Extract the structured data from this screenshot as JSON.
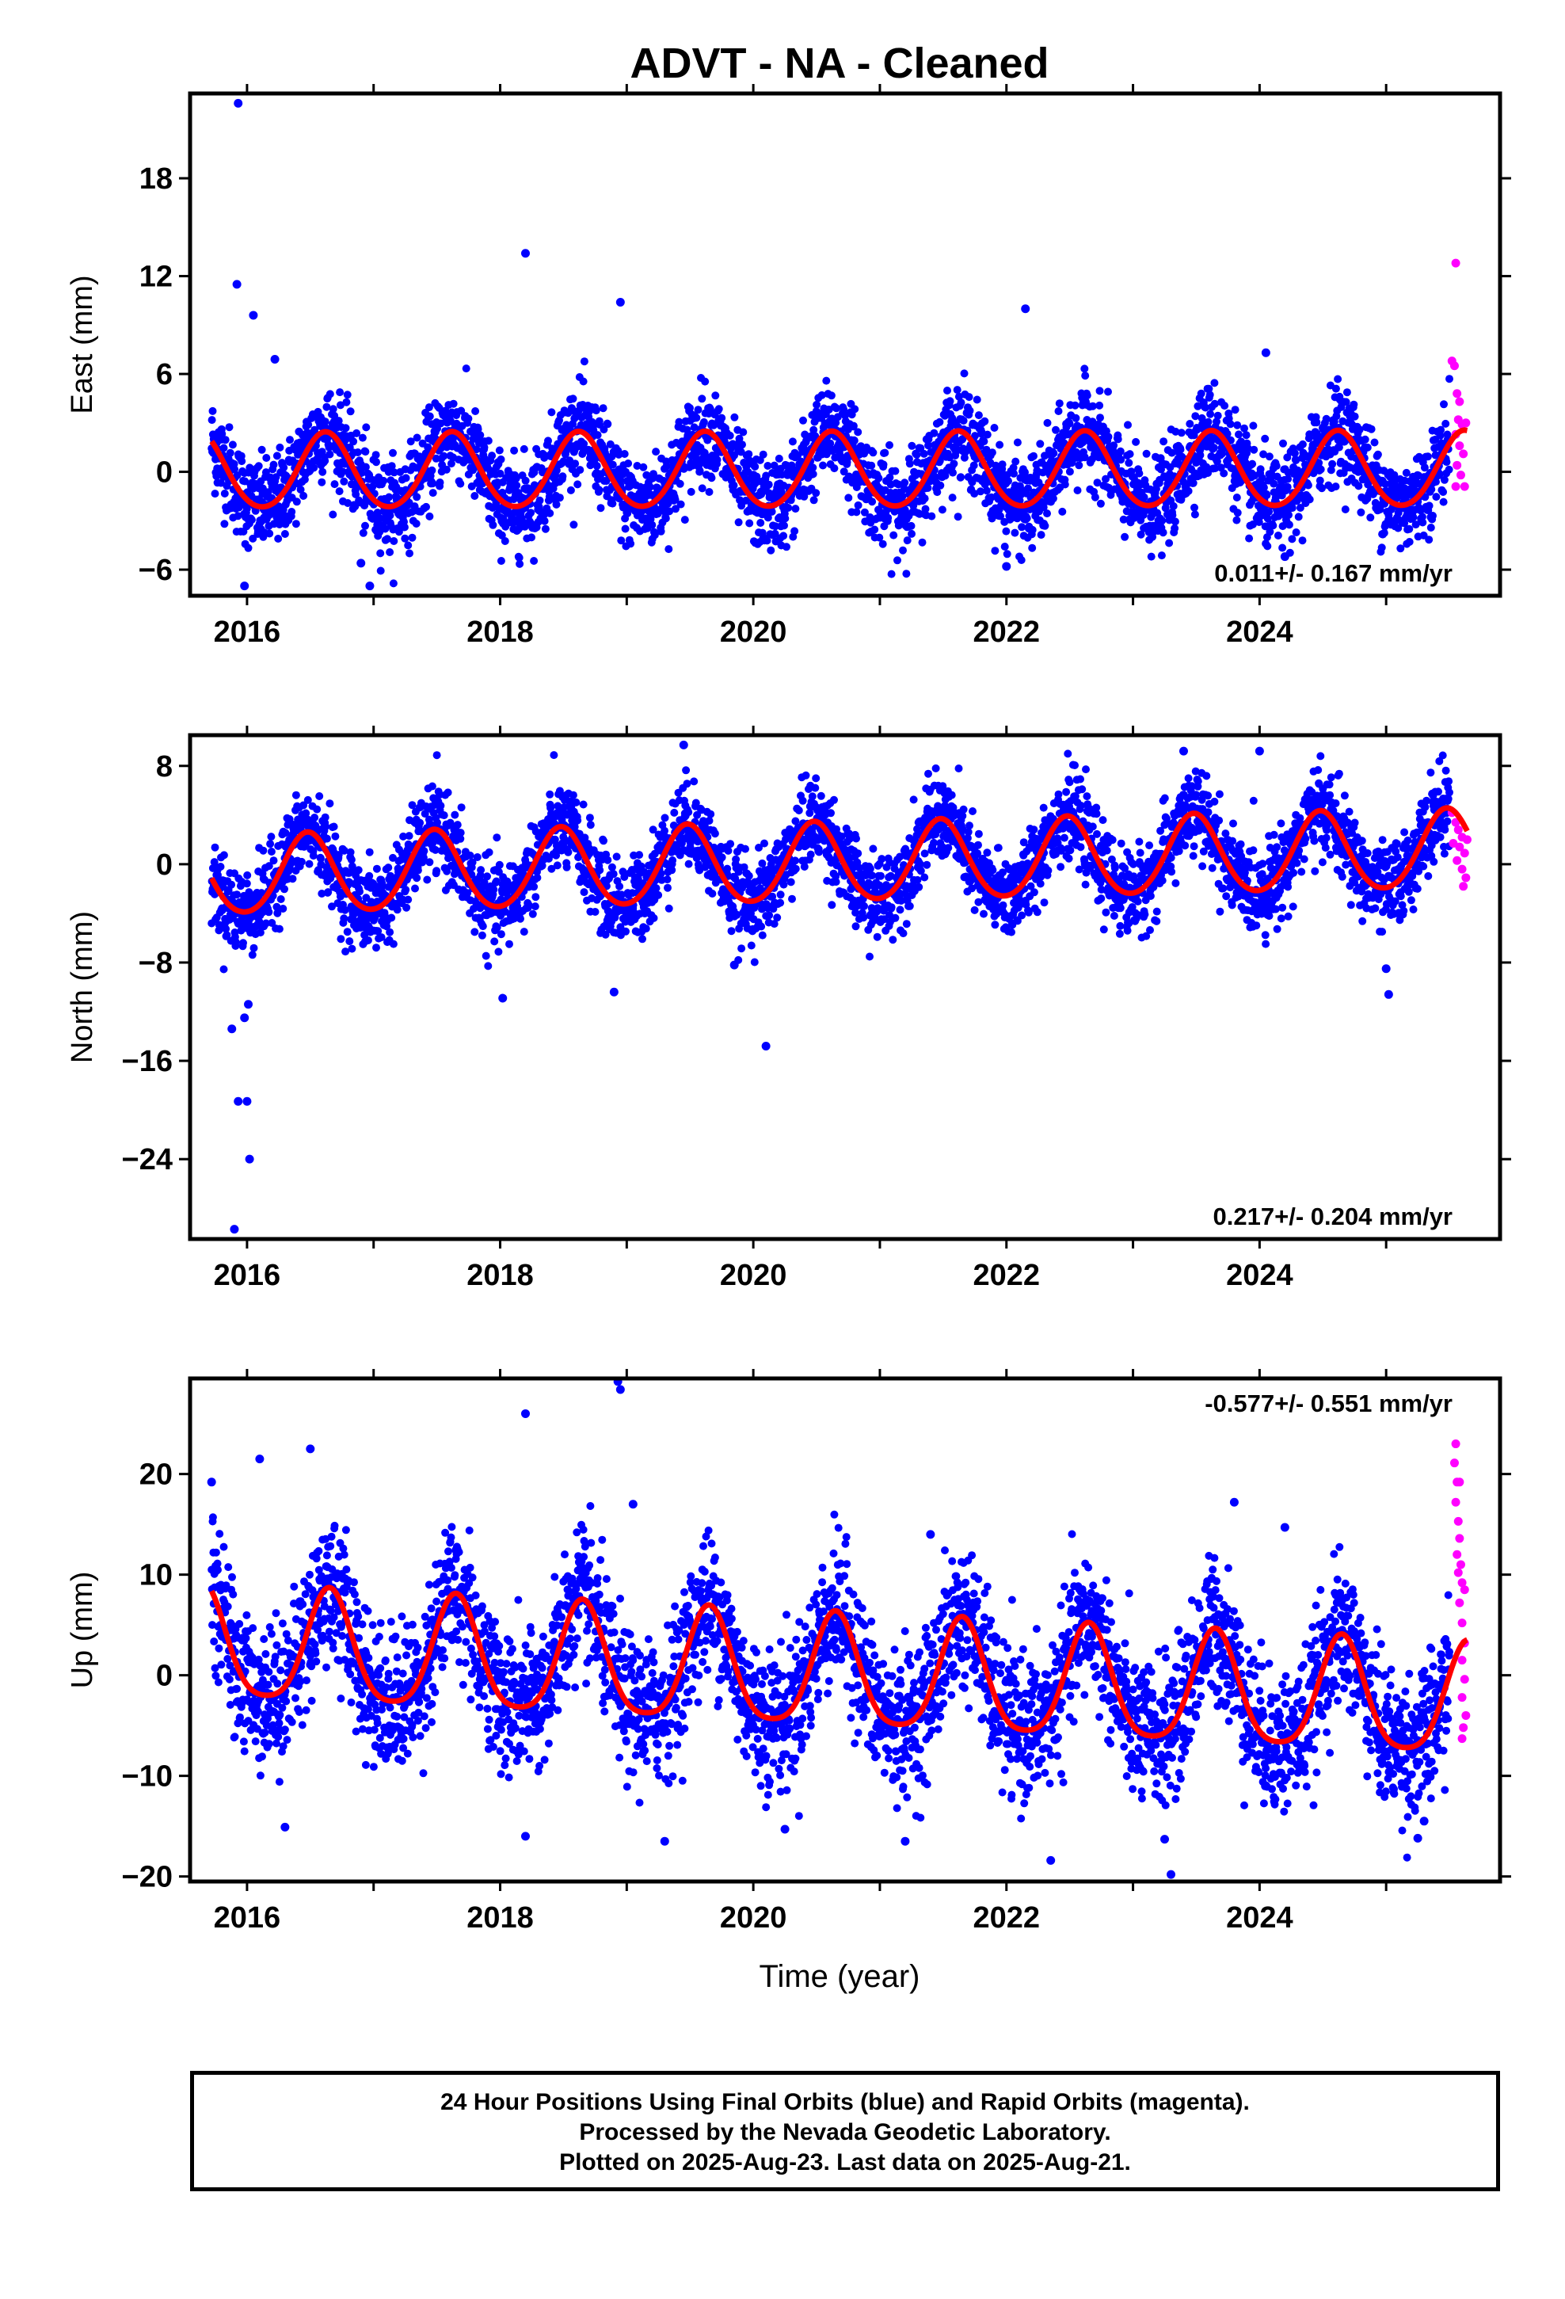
{
  "title": "ADVT  - NA - Cleaned",
  "x_axis_label": "Time (year)",
  "footer": {
    "line1": "24 Hour Positions Using Final Orbits (blue) and Rapid Orbits (magenta).",
    "line2": "Processed by the Nevada Geodetic Laboratory.",
    "line3": "Plotted on 2025-Aug-23. Last data on 2025-Aug-21."
  },
  "colors": {
    "final_orbits": "#0000ff",
    "rapid_orbits": "#ff00ff",
    "model_fit": "#ff0000",
    "frame": "#000000"
  },
  "chart_data": [
    {
      "type": "scatter",
      "panel": "east",
      "ylabel": "East (mm)",
      "xlim": [
        2015.55,
        2025.9
      ],
      "ylim": [
        -7.6,
        23.2
      ],
      "xticks": [
        2016,
        2018,
        2020,
        2022,
        2024
      ],
      "yticks": [
        -6,
        0,
        6,
        12,
        18
      ],
      "ytick_labels": [
        "−6",
        "0",
        "6",
        "12",
        "18"
      ],
      "rate_label": "0.011+/- 0.167 mm/yr",
      "rate_position": "bottom-right",
      "model": {
        "annual_amplitude": 2.3,
        "annual_peak_phase": 0.62,
        "semiannual_amplitude": 0.2,
        "trend_mm_per_yr": 0.011,
        "scatter_sd": 1.4
      },
      "series": [
        {
          "name": "Final Orbits",
          "color": "#0000ff",
          "x_range": [
            2015.72,
            2025.5
          ]
        },
        {
          "name": "Rapid Orbits",
          "color": "#ff00ff",
          "x_range": [
            2025.5,
            2025.64
          ]
        },
        {
          "name": "Model fit",
          "color": "#ff0000"
        }
      ],
      "outliers": [
        [
          2015.93,
          22.6
        ],
        [
          2015.92,
          11.5
        ],
        [
          2016.05,
          9.6
        ],
        [
          2016.22,
          6.9
        ],
        [
          2018.2,
          13.4
        ],
        [
          2018.95,
          10.4
        ],
        [
          2022.15,
          10.0
        ],
        [
          2024.05,
          7.3
        ],
        [
          2016.9,
          -5.6
        ],
        [
          2016.97,
          -7.0
        ],
        [
          2015.98,
          -7.0
        ],
        [
          2022.0,
          -5.8
        ],
        [
          2024.2,
          -5.2
        ]
      ],
      "rapid_points": [
        [
          2025.55,
          12.8
        ],
        [
          2025.52,
          6.8
        ],
        [
          2025.54,
          6.5
        ],
        [
          2025.56,
          4.8
        ],
        [
          2025.58,
          4.3
        ],
        [
          2025.57,
          3.2
        ],
        [
          2025.6,
          2.9
        ],
        [
          2025.55,
          2.3
        ],
        [
          2025.58,
          1.6
        ],
        [
          2025.61,
          1.1
        ],
        [
          2025.56,
          0.4
        ],
        [
          2025.59,
          -0.2
        ],
        [
          2025.55,
          -0.9
        ],
        [
          2025.62,
          -0.9
        ],
        [
          2025.63,
          3.0
        ]
      ]
    },
    {
      "type": "scatter",
      "panel": "north",
      "ylabel": "North (mm)",
      "xlim": [
        2015.55,
        2025.9
      ],
      "ylim": [
        -30.5,
        10.5
      ],
      "xticks": [
        2016,
        2018,
        2020,
        2022,
        2024
      ],
      "yticks": [
        -24,
        -16,
        -8,
        0,
        8
      ],
      "ytick_labels": [
        "−24",
        "−16",
        "−8",
        "0",
        "8"
      ],
      "rate_label": "0.217+/- 0.204 mm/yr",
      "rate_position": "bottom-right",
      "model": {
        "annual_amplitude": 3.2,
        "annual_peak_phase": 0.48,
        "semiannual_amplitude": 0.3,
        "trend_mm_per_yr": 0.217,
        "scatter_sd": 1.7
      },
      "series": [
        {
          "name": "Final Orbits",
          "color": "#0000ff",
          "x_range": [
            2015.72,
            2025.5
          ]
        },
        {
          "name": "Rapid Orbits",
          "color": "#ff00ff",
          "x_range": [
            2025.5,
            2025.64
          ]
        },
        {
          "name": "Model fit",
          "color": "#ff0000"
        }
      ],
      "outliers": [
        [
          2015.9,
          -29.7
        ],
        [
          2015.93,
          -19.3
        ],
        [
          2016.0,
          -19.3
        ],
        [
          2016.02,
          -24.0
        ],
        [
          2015.88,
          -13.4
        ],
        [
          2015.98,
          -12.5
        ],
        [
          2016.01,
          -11.4
        ],
        [
          2018.02,
          -10.9
        ],
        [
          2018.9,
          -10.4
        ],
        [
          2020.1,
          -14.8
        ],
        [
          2025.0,
          -8.5
        ],
        [
          2025.02,
          -10.6
        ],
        [
          2019.45,
          9.7
        ],
        [
          2023.4,
          9.2
        ],
        [
          2024.0,
          9.2
        ],
        [
          2019.85,
          -8.2
        ]
      ],
      "rapid_points": [
        [
          2025.52,
          4.2
        ],
        [
          2025.55,
          3.4
        ],
        [
          2025.57,
          2.8
        ],
        [
          2025.6,
          2.2
        ],
        [
          2025.58,
          1.4
        ],
        [
          2025.62,
          0.9
        ],
        [
          2025.56,
          0.3
        ],
        [
          2025.6,
          -0.4
        ],
        [
          2025.63,
          -1.1
        ],
        [
          2025.61,
          -1.8
        ],
        [
          2025.64,
          2.0
        ],
        [
          2025.53,
          1.7
        ]
      ]
    },
    {
      "type": "scatter",
      "panel": "up",
      "ylabel": "Up (mm)",
      "xlim": [
        2015.55,
        2025.9
      ],
      "ylim": [
        -20.5,
        29.5
      ],
      "xticks": [
        2016,
        2018,
        2020,
        2022,
        2024
      ],
      "yticks": [
        -20,
        -10,
        0,
        10,
        20
      ],
      "ytick_labels": [
        "−20",
        "−10",
        "0",
        "10",
        "20"
      ],
      "rate_label": "-0.577+/- 0.551 mm/yr",
      "rate_position": "top-right",
      "model": {
        "annual_amplitude": 5.5,
        "annual_peak_phase": 0.65,
        "semiannual_amplitude": 1.0,
        "trend_mm_per_yr": -0.577,
        "scatter_sd": 3.5
      },
      "series": [
        {
          "name": "Final Orbits",
          "color": "#0000ff",
          "x_range": [
            2015.72,
            2025.5
          ]
        },
        {
          "name": "Rapid Orbits",
          "color": "#ff00ff",
          "x_range": [
            2025.5,
            2025.64
          ]
        },
        {
          "name": "Model fit",
          "color": "#ff0000"
        }
      ],
      "outliers": [
        [
          2018.2,
          26.0
        ],
        [
          2018.95,
          28.4
        ],
        [
          2018.93,
          29.2
        ],
        [
          2016.1,
          21.5
        ],
        [
          2016.5,
          22.5
        ],
        [
          2015.72,
          19.2
        ],
        [
          2019.05,
          17.0
        ],
        [
          2021.4,
          14.0
        ],
        [
          2023.8,
          17.2
        ],
        [
          2024.2,
          14.7
        ],
        [
          2016.3,
          -15.1
        ],
        [
          2018.2,
          -16.0
        ],
        [
          2019.3,
          -16.5
        ],
        [
          2020.25,
          -15.3
        ],
        [
          2021.2,
          -16.5
        ],
        [
          2022.35,
          -18.4
        ],
        [
          2023.3,
          -19.8
        ],
        [
          2023.25,
          -16.3
        ],
        [
          2025.25,
          -16.2
        ],
        [
          2025.3,
          -14.5
        ]
      ],
      "rapid_points": [
        [
          2025.55,
          23.0
        ],
        [
          2025.54,
          21.1
        ],
        [
          2025.56,
          19.2
        ],
        [
          2025.58,
          19.2
        ],
        [
          2025.55,
          17.2
        ],
        [
          2025.57,
          15.3
        ],
        [
          2025.58,
          13.6
        ],
        [
          2025.56,
          12.0
        ],
        [
          2025.59,
          11.0
        ],
        [
          2025.57,
          10.2
        ],
        [
          2025.6,
          9.2
        ],
        [
          2025.62,
          8.5
        ],
        [
          2025.58,
          7.2
        ],
        [
          2025.6,
          5.2
        ],
        [
          2025.62,
          3.2
        ],
        [
          2025.6,
          1.5
        ],
        [
          2025.62,
          -0.4
        ],
        [
          2025.6,
          -2.2
        ],
        [
          2025.63,
          -4.0
        ],
        [
          2025.61,
          -5.2
        ],
        [
          2025.6,
          -6.3
        ]
      ]
    }
  ]
}
